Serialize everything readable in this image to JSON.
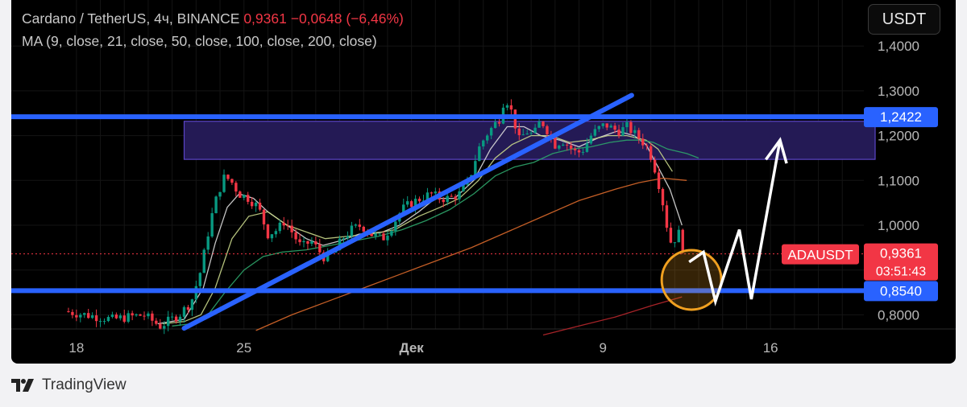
{
  "header": {
    "symbol": "Cardano / TetherUS, 4ч, BINANCE",
    "price": "0,9361",
    "change": "−0,0648 (−6,46%)",
    "indicators": "MA (9, close, 21, close, 50, close, 100, close, 200, close)"
  },
  "quote_button": "USDT",
  "brand": "TradingView",
  "chart_data": {
    "type": "candlestick",
    "symbol": "ADAUSDT",
    "timeframe": "4ч",
    "exchange": "BINANCE",
    "ylim": [
      0.75,
      1.43
    ],
    "y_ticks": [
      {
        "value": 1.4,
        "label": "1,4000"
      },
      {
        "value": 1.3,
        "label": "1,3000"
      },
      {
        "value": 1.2,
        "label": "1,2000"
      },
      {
        "value": 1.1,
        "label": "1,1000"
      },
      {
        "value": 1.0,
        "label": "1,0000"
      },
      {
        "value": 0.8,
        "label": "0,8000"
      }
    ],
    "x_ticks": [
      {
        "day": 18,
        "label": "18"
      },
      {
        "day": 25,
        "label": "25"
      },
      {
        "day": 32,
        "label": "Дек",
        "bold": true
      },
      {
        "day": 40,
        "label": "9"
      },
      {
        "day": 47,
        "label": "16"
      }
    ],
    "price_badges": [
      {
        "value": 1.2422,
        "label": "1,2422",
        "color": "#2962ff"
      },
      {
        "value": 0.9361,
        "label": "0,9361",
        "sub": "03:51:43",
        "color": "#f23645"
      },
      {
        "value": 0.854,
        "label": "0,8540",
        "color": "#2962ff"
      }
    ],
    "symbol_tag": "ADAUSDT",
    "current_price": 0.9361,
    "countdown": "03:51:43",
    "support_level": 0.854,
    "resistance_level": 1.2422,
    "resistance_zone": [
      1.147,
      1.232
    ],
    "trendline": {
      "from": [
        22.5,
        0.77
      ],
      "to": [
        41.2,
        1.29
      ]
    },
    "colors": {
      "up": "#089981",
      "down": "#f23645",
      "level": "#2962ff",
      "zone": "#241a55",
      "highlight_circle": "#f0a020",
      "projection_arrow": "#ffffff",
      "ma9": "#d9d9d9",
      "ma21": "#c8d68a",
      "ma50": "#2ea56a",
      "ma100": "#d9682a",
      "ma200": "#b8272c"
    },
    "price_path": [
      [
        17.5,
        0.808
      ],
      [
        19.5,
        0.79
      ],
      [
        20.8,
        0.8
      ],
      [
        21.5,
        0.775
      ],
      [
        22.3,
        0.8
      ],
      [
        22.8,
        0.83
      ],
      [
        23.2,
        0.9
      ],
      [
        23.6,
        1.01
      ],
      [
        23.9,
        1.07
      ],
      [
        24.2,
        1.11
      ],
      [
        24.5,
        1.095
      ],
      [
        24.8,
        1.07
      ],
      [
        25.2,
        1.06
      ],
      [
        25.6,
        1.04
      ],
      [
        26.0,
        0.98
      ],
      [
        26.4,
        0.99
      ],
      [
        26.7,
        1.01
      ],
      [
        27.0,
        0.985
      ],
      [
        27.4,
        0.95
      ],
      [
        27.8,
        0.965
      ],
      [
        28.1,
        0.945
      ],
      [
        28.4,
        0.925
      ],
      [
        28.8,
        0.94
      ],
      [
        29.1,
        0.97
      ],
      [
        29.5,
        0.99
      ],
      [
        29.9,
        1.0
      ],
      [
        30.3,
        0.98
      ],
      [
        30.8,
        0.97
      ],
      [
        31.2,
        1.0
      ],
      [
        31.6,
        1.035
      ],
      [
        32.0,
        1.05
      ],
      [
        32.4,
        1.06
      ],
      [
        32.8,
        1.07
      ],
      [
        33.2,
        1.06
      ],
      [
        33.6,
        1.06
      ],
      [
        34.0,
        1.07
      ],
      [
        34.4,
        1.1
      ],
      [
        34.8,
        1.17
      ],
      [
        35.1,
        1.2
      ],
      [
        35.4,
        1.22
      ],
      [
        35.7,
        1.24
      ],
      [
        35.9,
        1.29
      ],
      [
        36.2,
        1.25
      ],
      [
        36.5,
        1.19
      ],
      [
        36.8,
        1.21
      ],
      [
        37.1,
        1.2
      ],
      [
        37.4,
        1.235
      ],
      [
        37.7,
        1.21
      ],
      [
        38.0,
        1.18
      ],
      [
        38.3,
        1.19
      ],
      [
        38.6,
        1.175
      ],
      [
        38.9,
        1.16
      ],
      [
        39.2,
        1.17
      ],
      [
        39.5,
        1.2
      ],
      [
        39.8,
        1.215
      ],
      [
        40.1,
        1.225
      ],
      [
        40.4,
        1.215
      ],
      [
        40.7,
        1.21
      ],
      [
        41.0,
        1.22
      ],
      [
        41.3,
        1.205
      ],
      [
        41.6,
        1.19
      ],
      [
        41.9,
        1.17
      ],
      [
        42.1,
        1.14
      ],
      [
        42.3,
        1.1
      ],
      [
        42.5,
        1.05
      ],
      [
        42.7,
        0.99
      ],
      [
        42.85,
        0.96
      ],
      [
        43.0,
        0.97
      ],
      [
        43.15,
        0.985
      ],
      [
        43.3,
        0.955
      ],
      [
        43.45,
        0.936
      ]
    ],
    "moving_averages": [
      {
        "name": "MA 9",
        "points": [
          [
            21.4,
            0.78
          ],
          [
            22.5,
            0.79
          ],
          [
            23.3,
            0.86
          ],
          [
            23.8,
            0.96
          ],
          [
            24.3,
            1.04
          ],
          [
            24.8,
            1.07
          ],
          [
            25.4,
            1.06
          ],
          [
            26.0,
            1.03
          ],
          [
            26.8,
            1.0
          ],
          [
            27.6,
            0.97
          ],
          [
            28.3,
            0.955
          ],
          [
            29.0,
            0.965
          ],
          [
            29.8,
            0.98
          ],
          [
            30.8,
            0.985
          ],
          [
            31.5,
            1.0
          ],
          [
            32.3,
            1.03
          ],
          [
            33.0,
            1.06
          ],
          [
            33.8,
            1.06
          ],
          [
            34.6,
            1.1
          ],
          [
            35.3,
            1.17
          ],
          [
            36.0,
            1.22
          ],
          [
            36.7,
            1.22
          ],
          [
            37.4,
            1.2
          ],
          [
            38.2,
            1.19
          ],
          [
            39.0,
            1.175
          ],
          [
            39.8,
            1.195
          ],
          [
            40.6,
            1.21
          ],
          [
            41.3,
            1.2
          ],
          [
            41.8,
            1.18
          ],
          [
            42.3,
            1.13
          ],
          [
            42.8,
            1.08
          ],
          [
            43.3,
            1.0
          ]
        ]
      },
      {
        "name": "MA 21",
        "points": [
          [
            21.6,
            0.78
          ],
          [
            22.5,
            0.785
          ],
          [
            23.2,
            0.8
          ],
          [
            23.8,
            0.86
          ],
          [
            24.5,
            0.97
          ],
          [
            25.2,
            1.02
          ],
          [
            26.0,
            1.03
          ],
          [
            26.8,
            1.0
          ],
          [
            27.6,
            0.985
          ],
          [
            28.4,
            0.97
          ],
          [
            29.3,
            0.975
          ],
          [
            30.3,
            0.98
          ],
          [
            31.3,
            0.99
          ],
          [
            32.3,
            1.02
          ],
          [
            33.2,
            1.04
          ],
          [
            34.0,
            1.06
          ],
          [
            34.8,
            1.1
          ],
          [
            35.5,
            1.15
          ],
          [
            36.2,
            1.18
          ],
          [
            37.0,
            1.2
          ],
          [
            37.8,
            1.2
          ],
          [
            38.6,
            1.185
          ],
          [
            39.4,
            1.19
          ],
          [
            40.2,
            1.2
          ],
          [
            41.0,
            1.2
          ],
          [
            41.8,
            1.19
          ],
          [
            42.3,
            1.17
          ],
          [
            42.9,
            1.12
          ]
        ]
      },
      {
        "name": "MA 50",
        "points": [
          [
            22.0,
            0.775
          ],
          [
            22.8,
            0.78
          ],
          [
            23.5,
            0.8
          ],
          [
            24.2,
            0.85
          ],
          [
            25.0,
            0.9
          ],
          [
            25.8,
            0.93
          ],
          [
            26.6,
            0.94
          ],
          [
            27.6,
            0.945
          ],
          [
            28.6,
            0.955
          ],
          [
            29.6,
            0.965
          ],
          [
            30.6,
            0.975
          ],
          [
            31.6,
            0.99
          ],
          [
            32.6,
            1.01
          ],
          [
            33.6,
            1.035
          ],
          [
            34.6,
            1.07
          ],
          [
            35.5,
            1.11
          ],
          [
            36.3,
            1.13
          ],
          [
            37.1,
            1.14
          ],
          [
            37.9,
            1.16
          ],
          [
            38.7,
            1.17
          ],
          [
            39.5,
            1.175
          ],
          [
            40.3,
            1.185
          ],
          [
            41.0,
            1.19
          ],
          [
            41.6,
            1.19
          ],
          [
            42.1,
            1.185
          ],
          [
            42.7,
            1.17
          ],
          [
            43.5,
            1.16
          ],
          [
            44.0,
            1.15
          ]
        ]
      },
      {
        "name": "MA 100",
        "points": [
          [
            25.5,
            0.765
          ],
          [
            27.0,
            0.8
          ],
          [
            28.5,
            0.83
          ],
          [
            30.0,
            0.86
          ],
          [
            31.5,
            0.89
          ],
          [
            33.0,
            0.92
          ],
          [
            34.5,
            0.95
          ],
          [
            36.0,
            0.985
          ],
          [
            37.5,
            1.02
          ],
          [
            39.0,
            1.055
          ],
          [
            40.5,
            1.08
          ],
          [
            41.5,
            1.095
          ],
          [
            42.5,
            1.105
          ],
          [
            43.5,
            1.1
          ]
        ]
      },
      {
        "name": "MA 200",
        "points": [
          [
            37.5,
            0.755
          ],
          [
            39.0,
            0.775
          ],
          [
            40.5,
            0.795
          ],
          [
            42.0,
            0.82
          ],
          [
            43.3,
            0.84
          ]
        ]
      }
    ],
    "projection_path": [
      [
        43.6,
        0.918
      ],
      [
        44.2,
        0.94
      ],
      [
        44.7,
        0.83
      ],
      [
        45.7,
        0.99
      ],
      [
        46.2,
        0.835
      ],
      [
        47.4,
        1.19
      ]
    ],
    "highlight_circle_center": [
      43.7,
      0.878
    ]
  }
}
